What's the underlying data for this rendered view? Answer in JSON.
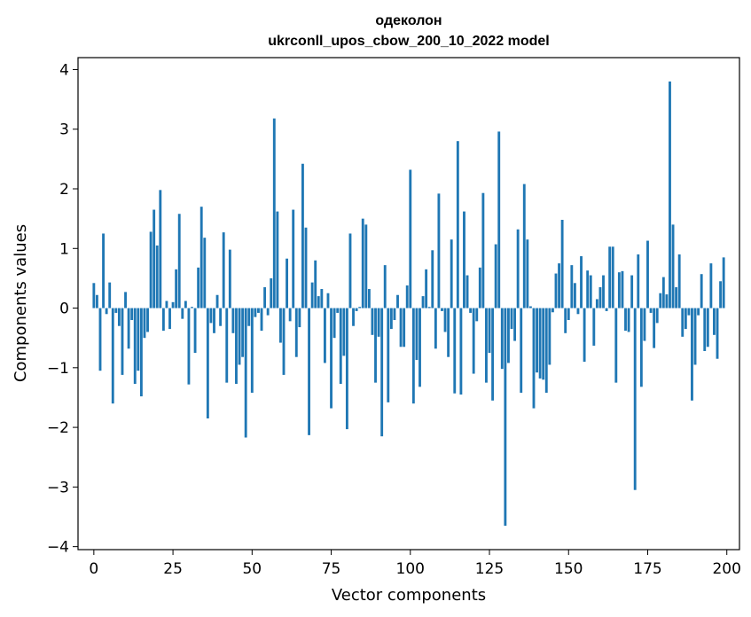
{
  "chart_data": {
    "type": "bar",
    "title": "одеколон",
    "subtitle": "ukrconll_upos_cbow_200_10_2022 model",
    "xlabel": "Vector components",
    "ylabel": "Components values",
    "xlim": [
      -5,
      204
    ],
    "ylim": [
      -4.05,
      4.2
    ],
    "xticks": [
      0,
      25,
      50,
      75,
      100,
      125,
      150,
      175,
      200
    ],
    "yticks": [
      -4,
      -3,
      -2,
      -1,
      0,
      1,
      2,
      3,
      4
    ],
    "ytick_labels": [
      "−4",
      "−3",
      "−2",
      "−1",
      "0",
      "1",
      "2",
      "3",
      "4"
    ],
    "grid": false,
    "legend": "none",
    "color": "#1f77b4",
    "x": [
      0,
      1,
      2,
      3,
      4,
      5,
      6,
      7,
      8,
      9,
      10,
      11,
      12,
      13,
      14,
      15,
      16,
      17,
      18,
      19,
      20,
      21,
      22,
      23,
      24,
      25,
      26,
      27,
      28,
      29,
      30,
      31,
      32,
      33,
      34,
      35,
      36,
      37,
      38,
      39,
      40,
      41,
      42,
      43,
      44,
      45,
      46,
      47,
      48,
      49,
      50,
      51,
      52,
      53,
      54,
      55,
      56,
      57,
      58,
      59,
      60,
      61,
      62,
      63,
      64,
      65,
      66,
      67,
      68,
      69,
      70,
      71,
      72,
      73,
      74,
      75,
      76,
      77,
      78,
      79,
      80,
      81,
      82,
      83,
      84,
      85,
      86,
      87,
      88,
      89,
      90,
      91,
      92,
      93,
      94,
      95,
      96,
      97,
      98,
      99,
      100,
      101,
      102,
      103,
      104,
      105,
      106,
      107,
      108,
      109,
      110,
      111,
      112,
      113,
      114,
      115,
      116,
      117,
      118,
      119,
      120,
      121,
      122,
      123,
      124,
      125,
      126,
      127,
      128,
      129,
      130,
      131,
      132,
      133,
      134,
      135,
      136,
      137,
      138,
      139,
      140,
      141,
      142,
      143,
      144,
      145,
      146,
      147,
      148,
      149,
      150,
      151,
      152,
      153,
      154,
      155,
      156,
      157,
      158,
      159,
      160,
      161,
      162,
      163,
      164,
      165,
      166,
      167,
      168,
      169,
      170,
      171,
      172,
      173,
      174,
      175,
      176,
      177,
      178,
      179,
      180,
      181,
      182,
      183,
      184,
      185,
      186,
      187,
      188,
      189,
      190,
      191,
      192,
      193,
      194,
      195,
      196,
      197,
      198,
      199
    ],
    "values": [
      0.42,
      0.22,
      -1.05,
      1.25,
      -0.1,
      0.43,
      -1.6,
      -0.08,
      -0.3,
      -1.12,
      0.27,
      -0.68,
      -0.2,
      -1.27,
      -1.05,
      -1.48,
      -0.5,
      -0.4,
      1.28,
      1.65,
      1.05,
      1.98,
      -0.38,
      0.12,
      -0.35,
      0.1,
      0.65,
      1.58,
      -0.18,
      0.12,
      -1.28,
      0.02,
      -0.75,
      0.68,
      1.7,
      1.18,
      -1.85,
      -0.25,
      -0.42,
      0.22,
      -0.3,
      1.27,
      -1.25,
      0.98,
      -0.42,
      -1.27,
      -0.95,
      -0.82,
      -2.17,
      -0.3,
      -1.42,
      -0.15,
      -0.08,
      -0.38,
      0.35,
      -0.12,
      0.5,
      3.18,
      1.62,
      -0.58,
      -1.12,
      0.83,
      -0.22,
      1.65,
      -0.82,
      -0.32,
      2.42,
      1.35,
      -2.13,
      0.43,
      0.8,
      0.2,
      0.32,
      -0.92,
      0.25,
      -1.68,
      -0.5,
      -0.08,
      -1.27,
      -0.8,
      -2.03,
      1.25,
      -0.3,
      -0.05,
      0.02,
      1.5,
      1.4,
      0.32,
      -0.45,
      -1.25,
      -0.48,
      -2.15,
      0.72,
      -1.58,
      -0.35,
      -0.2,
      0.22,
      -0.65,
      -0.65,
      0.38,
      2.32,
      -1.6,
      -0.87,
      -1.32,
      0.2,
      0.65,
      0.02,
      0.97,
      -0.68,
      1.92,
      -0.05,
      -0.4,
      -0.82,
      1.15,
      -1.43,
      2.8,
      -1.45,
      1.62,
      0.55,
      -0.08,
      -1.1,
      -0.22,
      0.68,
      1.93,
      -1.25,
      -0.75,
      -1.55,
      1.07,
      2.96,
      -1.02,
      -3.65,
      -0.92,
      -0.35,
      -0.55,
      1.32,
      -1.42,
      2.08,
      1.15,
      0.03,
      -1.68,
      -1.08,
      -1.18,
      -1.2,
      -1.42,
      -0.95,
      -0.07,
      0.58,
      0.75,
      1.48,
      -0.42,
      -0.2,
      0.72,
      0.42,
      -0.1,
      0.87,
      -0.9,
      0.63,
      0.55,
      -0.63,
      0.15,
      0.35,
      0.55,
      -0.05,
      1.03,
      1.03,
      -1.25,
      0.6,
      0.62,
      -0.38,
      -0.4,
      0.55,
      -3.05,
      0.9,
      -1.32,
      -0.55,
      1.13,
      -0.08,
      -0.67,
      -0.25,
      0.25,
      0.52,
      0.23,
      3.8,
      1.4,
      0.35,
      0.9,
      -0.48,
      -0.35,
      -0.12,
      -1.55,
      -0.95,
      -0.12,
      0.57,
      -0.72,
      -0.65,
      0.75,
      -0.45,
      -0.85,
      0.45,
      0.85
    ]
  }
}
